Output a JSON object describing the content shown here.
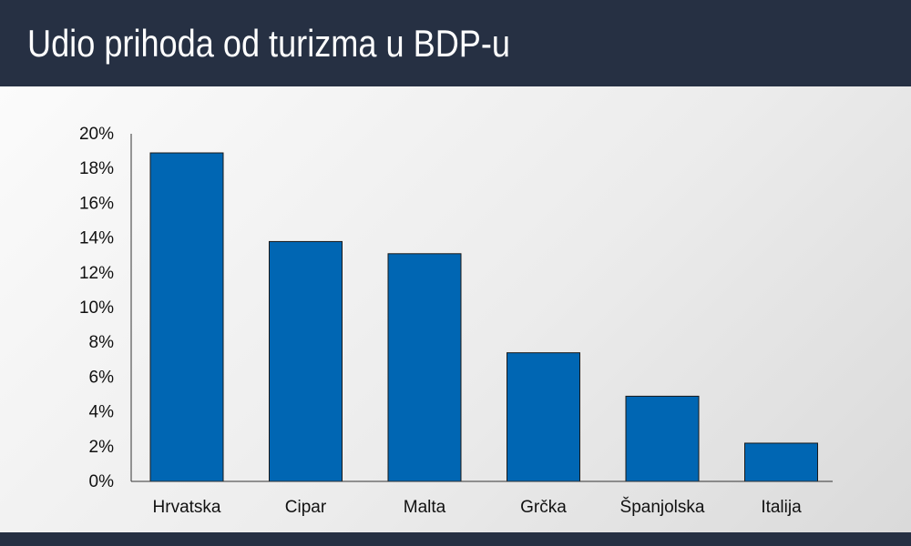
{
  "header": {
    "title": "Udio prihoda od turizma u BDP-u"
  },
  "colors": {
    "header_bg": "#263043",
    "bar_fill": "#0066b3",
    "bar_stroke": "#1a1a1a"
  },
  "chart_data": {
    "type": "bar",
    "title": "Udio prihoda od turizma u BDP-u",
    "xlabel": "",
    "ylabel": "",
    "categories": [
      "Hrvatska",
      "Cipar",
      "Malta",
      "Grčka",
      "Španjolska",
      "Italija"
    ],
    "values": [
      18.9,
      13.8,
      13.1,
      7.4,
      4.9,
      2.2
    ],
    "ylim": [
      0,
      20
    ],
    "yticks": [
      "0%",
      "2%",
      "4%",
      "6%",
      "8%",
      "10%",
      "12%",
      "14%",
      "16%",
      "18%",
      "20%"
    ],
    "grid": false,
    "legend": "none"
  }
}
